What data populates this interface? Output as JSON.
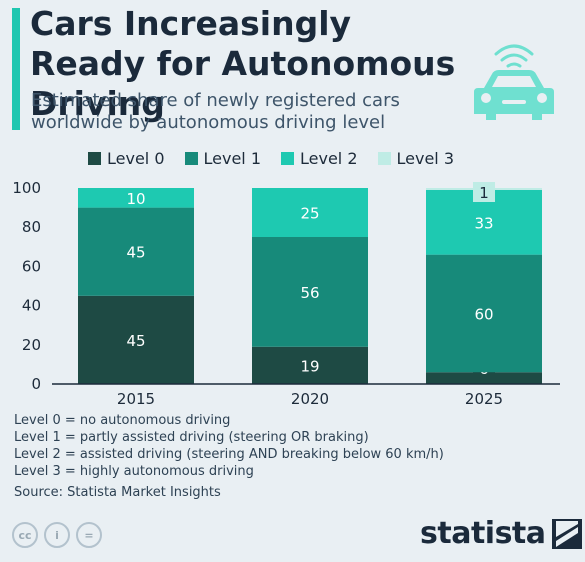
{
  "header": {
    "title": "Cars Increasingly Ready for Autonomous Driving",
    "subtitle": "Estimated share of newly registered cars worldwide by autonomous driving level"
  },
  "legend": [
    {
      "label": "Level 0",
      "color": "#1e4a44"
    },
    {
      "label": "Level 1",
      "color": "#178a7a"
    },
    {
      "label": "Level 2",
      "color": "#1ec9b1"
    },
    {
      "label": "Level 3",
      "color": "#bfece5"
    }
  ],
  "chart_data": {
    "type": "bar",
    "stacked": true,
    "categories": [
      "2015",
      "2020",
      "2025"
    ],
    "series": [
      {
        "name": "Level 0",
        "values": [
          45,
          19,
          6
        ]
      },
      {
        "name": "Level 1",
        "values": [
          45,
          56,
          60
        ]
      },
      {
        "name": "Level 2",
        "values": [
          10,
          25,
          33
        ]
      },
      {
        "name": "Level 3",
        "values": [
          0,
          0,
          1
        ]
      }
    ],
    "ylim": [
      0,
      100
    ],
    "yticks": [
      0,
      20,
      40,
      60,
      80,
      100
    ],
    "grid": false,
    "legend_position": "top"
  },
  "notes": [
    "Level 0 = no autonomous driving",
    "Level 1 = partly assisted driving (steering OR braking)",
    "Level 2 = assisted driving (steering AND breaking below 60 km/h)",
    "Level 3 = highly autonomous driving"
  ],
  "source": "Source: Statista Market Insights",
  "license_icons": [
    "cc-icon",
    "person-icon",
    "equals-icon"
  ],
  "license_glyphs": [
    "cc",
    "i",
    "="
  ],
  "brand": "statista"
}
